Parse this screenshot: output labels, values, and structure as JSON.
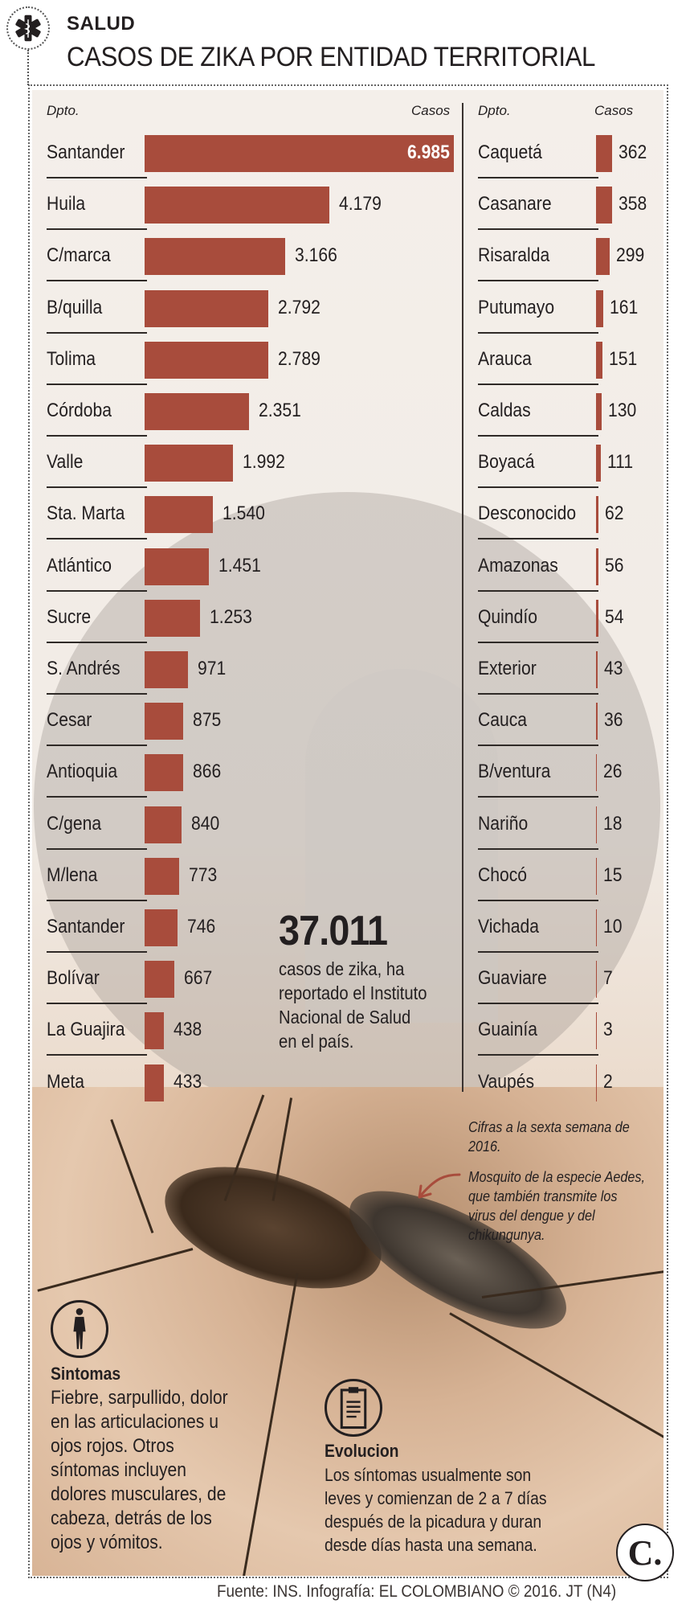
{
  "header": {
    "section": "SALUD",
    "title": "CASOS DE ZIKA  POR ENTIDAD TERRITORIAL",
    "section_icon": "medical-star-of-life-icon"
  },
  "columns": {
    "left": {
      "dept_header": "Dpto.",
      "cases_header": "Casos"
    },
    "right": {
      "dept_header": "Dpto.",
      "cases_header": "Casos"
    }
  },
  "chart_data": {
    "type": "bar",
    "orientation": "horizontal",
    "title": "CASOS DE ZIKA  POR ENTIDAD TERRITORIAL",
    "xlabel": "Casos",
    "ylabel": "Dpto.",
    "grid": false,
    "legend": null,
    "bar_color": "#a84c3c",
    "categories": [
      "Santander",
      "Huila",
      "C/marca",
      "B/quilla",
      "Tolima",
      "Córdoba",
      "Valle",
      "Sta. Marta",
      "Atlántico",
      "Sucre",
      "S. Andrés",
      "Cesar",
      "Antioquia",
      "C/gena",
      "M/lena",
      "Santander",
      "Bolívar",
      "La Guajira",
      "Meta",
      "Caquetá",
      "Casanare",
      "Risaralda",
      "Putumayo",
      "Arauca",
      "Caldas",
      "Boyacá",
      "Desconocido",
      "Amazonas",
      "Quindío",
      "Exterior",
      "Cauca",
      "B/ventura",
      "Nariño",
      "Chocó",
      "Vichada",
      "Guaviare",
      "Guainía",
      "Vaupés"
    ],
    "values": [
      6985,
      4179,
      3166,
      2792,
      2789,
      2351,
      1992,
      1540,
      1451,
      1253,
      971,
      875,
      866,
      840,
      773,
      746,
      667,
      438,
      433,
      362,
      358,
      299,
      161,
      151,
      130,
      111,
      62,
      56,
      54,
      43,
      36,
      26,
      18,
      15,
      10,
      7,
      3,
      2
    ],
    "value_labels": [
      "6.985",
      "4.179",
      "3.166",
      "2.792",
      "2.789",
      "2.351",
      "1.992",
      "1.540",
      "1.451",
      "1.253",
      "971",
      "875",
      "866",
      "840",
      "773",
      "746",
      "667",
      "438",
      "433",
      "362",
      "358",
      "299",
      "161",
      "151",
      "130",
      "111",
      "62",
      "56",
      "54",
      "43",
      "36",
      "26",
      "18",
      "15",
      "10",
      "7",
      "3",
      "2"
    ],
    "total": 37011
  },
  "left_rows": [
    {
      "dept": "Santander",
      "cases": "6.985",
      "value": 6985
    },
    {
      "dept": "Huila",
      "cases": "4.179",
      "value": 4179
    },
    {
      "dept": "C/marca",
      "cases": "3.166",
      "value": 3166
    },
    {
      "dept": "B/quilla",
      "cases": "2.792",
      "value": 2792
    },
    {
      "dept": "Tolima",
      "cases": "2.789",
      "value": 2789
    },
    {
      "dept": "Córdoba",
      "cases": "2.351",
      "value": 2351
    },
    {
      "dept": "Valle",
      "cases": "1.992",
      "value": 1992
    },
    {
      "dept": "Sta. Marta",
      "cases": "1.540",
      "value": 1540
    },
    {
      "dept": "Atlántico",
      "cases": "1.451",
      "value": 1451
    },
    {
      "dept": "Sucre",
      "cases": "1.253",
      "value": 1253
    },
    {
      "dept": "S. Andrés",
      "cases": "971",
      "value": 971
    },
    {
      "dept": "Cesar",
      "cases": "875",
      "value": 875
    },
    {
      "dept": "Antioquia",
      "cases": "866",
      "value": 866
    },
    {
      "dept": "C/gena",
      "cases": "840",
      "value": 840
    },
    {
      "dept": "M/lena",
      "cases": "773",
      "value": 773
    },
    {
      "dept": "Santander",
      "cases": "746",
      "value": 746
    },
    {
      "dept": "Bolívar",
      "cases": "667",
      "value": 667
    },
    {
      "dept": "La Guajira",
      "cases": "438",
      "value": 438
    },
    {
      "dept": "Meta",
      "cases": "433",
      "value": 433
    }
  ],
  "right_rows": [
    {
      "dept": "Caquetá",
      "cases": "362",
      "value": 362
    },
    {
      "dept": "Casanare",
      "cases": "358",
      "value": 358
    },
    {
      "dept": "Risaralda",
      "cases": "299",
      "value": 299
    },
    {
      "dept": "Putumayo",
      "cases": "161",
      "value": 161
    },
    {
      "dept": "Arauca",
      "cases": "151",
      "value": 151
    },
    {
      "dept": "Caldas",
      "cases": "130",
      "value": 130
    },
    {
      "dept": "Boyacá",
      "cases": "111",
      "value": 111
    },
    {
      "dept": "Desconocido",
      "cases": "62",
      "value": 62
    },
    {
      "dept": "Amazonas",
      "cases": "56",
      "value": 56
    },
    {
      "dept": "Quindío",
      "cases": "54",
      "value": 54
    },
    {
      "dept": "Exterior",
      "cases": "43",
      "value": 43
    },
    {
      "dept": "Cauca",
      "cases": "36",
      "value": 36
    },
    {
      "dept": "B/ventura",
      "cases": "26",
      "value": 26
    },
    {
      "dept": "Nariño",
      "cases": "18",
      "value": 18
    },
    {
      "dept": "Chocó",
      "cases": "15",
      "value": 15
    },
    {
      "dept": "Vichada",
      "cases": "10",
      "value": 10
    },
    {
      "dept": "Guaviare",
      "cases": "7",
      "value": 7
    },
    {
      "dept": "Guainía",
      "cases": "3",
      "value": 3
    },
    {
      "dept": "Vaupés",
      "cases": "2",
      "value": 2
    }
  ],
  "total": {
    "number": "37.011",
    "text": "casos de zika, ha reportado el Instituto Nacional de Salud en el país."
  },
  "notes": {
    "date_note": "Cifras a la sexta semana de 2016.",
    "mosquito_note": "Mosquito de la especie Aedes, que también transmite los virus del dengue y del chikungunya."
  },
  "symptoms": {
    "icon": "human-figure-icon",
    "title": "Sintomas",
    "text": "Fiebre, sarpullido, dolor en las articulaciones u ojos rojos. Otros síntomas incluyen dolores musculares, de cabeza, detrás de los ojos y vómitos."
  },
  "evolution": {
    "icon": "clipboard-icon",
    "title": "Evolucion",
    "text": "Los síntomas usualmente son leves y comienzan de 2 a 7 días después de la picadura y duran desde días hasta una semana."
  },
  "brand_mark": "C.",
  "footer": "Fuente: INS. Infografía: EL COLOMBIANO © 2016. JT (N4)",
  "colors": {
    "bar": "#a84c3c",
    "text": "#231f20",
    "panel": "#f3ede7"
  }
}
